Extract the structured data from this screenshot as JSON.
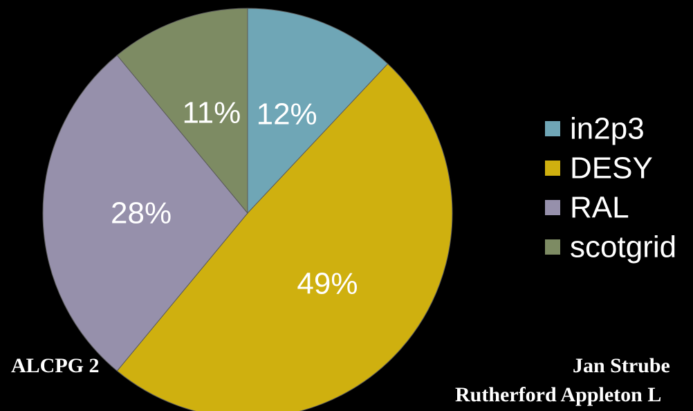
{
  "footer": {
    "left_text": "ALCPG 2",
    "author": "Jan Strube",
    "affiliation": "Rutherford Appleton L"
  },
  "chart_data": {
    "type": "pie",
    "start_angle_deg": 0,
    "direction": "clockwise",
    "slices": [
      {
        "name": "in2p3",
        "value": 12,
        "label": "12%",
        "color": "#6fa6b6"
      },
      {
        "name": "DESY",
        "value": 49,
        "label": "49%",
        "color": "#cfb00f"
      },
      {
        "name": "RAL",
        "value": 28,
        "label": "28%",
        "color": "#9690ab"
      },
      {
        "name": "scotgrid",
        "value": 11,
        "label": "11%",
        "color": "#7d8b63"
      }
    ],
    "legend": {
      "position": "right"
    }
  }
}
